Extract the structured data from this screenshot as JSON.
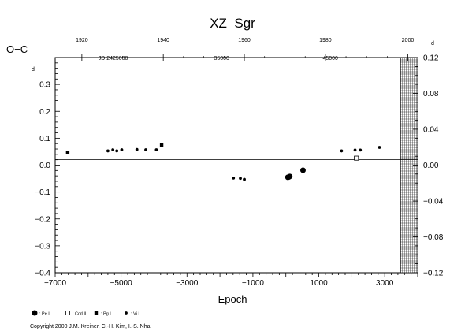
{
  "chart_data": {
    "type": "scatter",
    "title": "XZ  Sgr",
    "xlabel": "Epoch",
    "ylabel": "O−C",
    "y_unit_left": "d",
    "y_unit_right": "d",
    "x_range": [
      -7000,
      4000
    ],
    "y_range": [
      -0.4,
      0.4
    ],
    "x_ticks": [
      {
        "value": -7000,
        "label": "−7000"
      },
      {
        "value": -5000,
        "label": "−5000"
      },
      {
        "value": -3000,
        "label": "−3000"
      },
      {
        "value": -1000,
        "label": "−1000"
      },
      {
        "value": 1000,
        "label": "1000"
      },
      {
        "value": 3000,
        "label": "3000"
      }
    ],
    "y_ticks_left": [
      {
        "value": 0.3,
        "label": "0.3"
      },
      {
        "value": 0.2,
        "label": "0.2"
      },
      {
        "value": 0.1,
        "label": "0.1"
      },
      {
        "value": 0.0,
        "label": "0.0"
      },
      {
        "value": -0.1,
        "label": "−0.1"
      },
      {
        "value": -0.2,
        "label": "−0.2"
      },
      {
        "value": -0.3,
        "label": "−0.3"
      },
      {
        "value": -0.4,
        "label": "−0.4"
      }
    ],
    "y_ticks_right": [
      {
        "value": 0.12,
        "label": "0.12"
      },
      {
        "value": 0.08,
        "label": "0.08"
      },
      {
        "value": 0.04,
        "label": "0.04"
      },
      {
        "value": 0.0,
        "label": "0.00"
      },
      {
        "value": -0.04,
        "label": "−0.04"
      },
      {
        "value": -0.08,
        "label": "−0.08"
      },
      {
        "value": -0.12,
        "label": "−0.12"
      }
    ],
    "y_right_scale": 0.3,
    "top_year_ticks": [
      {
        "label": "1920",
        "epoch": -6190
      },
      {
        "label": "1940",
        "epoch": -3720
      },
      {
        "label": "1960",
        "epoch": -1260
      },
      {
        "label": "1980",
        "epoch": 1200
      },
      {
        "label": "2000",
        "epoch": 3700
      }
    ],
    "jd_ticks": [
      {
        "label": "JD  2425000",
        "epoch": -5240
      },
      {
        "label": "35000",
        "epoch": -1950
      },
      {
        "label": "45000",
        "epoch": 1350
      }
    ],
    "hatched_x_from": 3480,
    "zero_line": true,
    "legend": [
      {
        "marker": "large-dot",
        "label": ": Pe I"
      },
      {
        "marker": "open-square",
        "label": ": Ccd II"
      },
      {
        "marker": "filled-square",
        "label": ": Pg I"
      },
      {
        "marker": "small-dot",
        "label": ": Vi I"
      }
    ],
    "series": [
      {
        "name": "Pe I",
        "marker": "large-dot",
        "points": [
          {
            "x": 60,
            "y": -0.045
          },
          {
            "x": 90,
            "y": -0.044
          },
          {
            "x": 120,
            "y": -0.042
          },
          {
            "x": 520,
            "y": -0.019
          }
        ]
      },
      {
        "name": "Ccd II",
        "marker": "open-square",
        "points": [
          {
            "x": 2140,
            "y": 0.026
          }
        ]
      },
      {
        "name": "Pg I",
        "marker": "filled-square",
        "points": [
          {
            "x": -6620,
            "y": 0.046
          },
          {
            "x": -3770,
            "y": 0.075
          }
        ]
      },
      {
        "name": "Vi I",
        "marker": "small-dot",
        "points": [
          {
            "x": -5400,
            "y": 0.053
          },
          {
            "x": -5250,
            "y": 0.057
          },
          {
            "x": -5130,
            "y": 0.053
          },
          {
            "x": -4980,
            "y": 0.057
          },
          {
            "x": -4520,
            "y": 0.058
          },
          {
            "x": -4250,
            "y": 0.057
          },
          {
            "x": -3930,
            "y": 0.057
          },
          {
            "x": -1590,
            "y": -0.048
          },
          {
            "x": -1380,
            "y": -0.049
          },
          {
            "x": -1260,
            "y": -0.053
          },
          {
            "x": 1690,
            "y": 0.053
          },
          {
            "x": 2100,
            "y": 0.056
          },
          {
            "x": 2260,
            "y": 0.056
          },
          {
            "x": 2840,
            "y": 0.066
          }
        ]
      }
    ]
  },
  "copyright": "Copyright 2000 J.M. Kreiner, C.-H. Kim, I.-S. Nha"
}
